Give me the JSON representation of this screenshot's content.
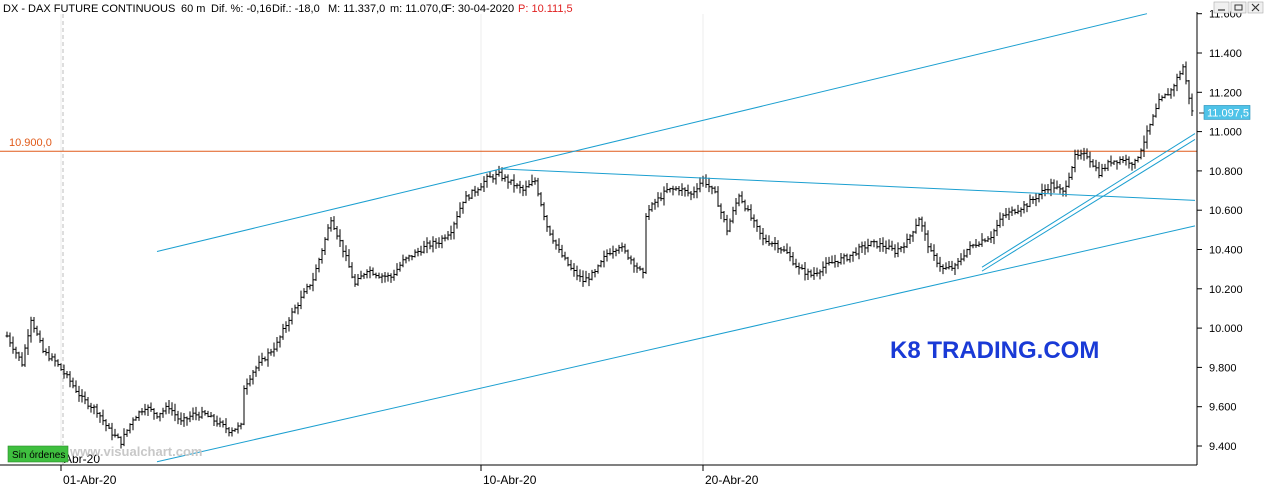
{
  "header": {
    "symbol": "DX - DAX FUTURE CONTINUOUS",
    "timeframe": "60 m",
    "diff_pct": "Dif. %: -0,16",
    "diff": "Dif.: -18,0",
    "max": "M: 11.337,0",
    "min": "m: 11.070,0",
    "date": "F: 30-04-2020",
    "price": "P: 10.111,5"
  },
  "watermark_site": "www.visualchart.com",
  "status_badge": "Sin órdenes",
  "brand": "K8 TRADING.COM",
  "level_label": "10.900,0",
  "last_price_label": "11.097,5",
  "colors": {
    "candle": "#000000",
    "trendline": "#1b9fd0",
    "level_line": "#e05a1a",
    "brand": "#1a3ad6",
    "price_tag": "#4fc3e8",
    "badge": "#3fbf3f"
  },
  "chart_data": {
    "type": "bar",
    "title": "",
    "ylim": [
      9300,
      11600
    ],
    "yticks": [
      "9.400",
      "9.600",
      "9.800",
      "10.000",
      "10.200",
      "10.400",
      "10.600",
      "10.800",
      "11.000",
      "11.200",
      "11.400",
      "11.600"
    ],
    "yticks_values": [
      9400,
      9600,
      9800,
      10000,
      10200,
      10400,
      10600,
      10800,
      11000,
      11200,
      11400,
      11600
    ],
    "xticks": [
      {
        "label": "01-Abr-20",
        "index": 18
      },
      {
        "label": "10-Abr-20",
        "index": 158
      },
      {
        "label": "20-Abr-20",
        "index": 232
      }
    ],
    "partial_xlabel": "Abr-20",
    "horizontal_level": 10900,
    "last_price": 11097.5,
    "anchors": [
      [
        0,
        9960
      ],
      [
        5,
        9820
      ],
      [
        8,
        10050
      ],
      [
        12,
        9880
      ],
      [
        16,
        9830
      ],
      [
        21,
        9730
      ],
      [
        25,
        9640
      ],
      [
        30,
        9580
      ],
      [
        34,
        9480
      ],
      [
        38,
        9420
      ],
      [
        42,
        9540
      ],
      [
        46,
        9600
      ],
      [
        50,
        9560
      ],
      [
        54,
        9600
      ],
      [
        58,
        9520
      ],
      [
        62,
        9560
      ],
      [
        66,
        9560
      ],
      [
        70,
        9520
      ],
      [
        74,
        9480
      ],
      [
        78,
        9500
      ],
      [
        79,
        9700
      ],
      [
        82,
        9780
      ],
      [
        86,
        9850
      ],
      [
        90,
        9920
      ],
      [
        94,
        10050
      ],
      [
        98,
        10150
      ],
      [
        102,
        10250
      ],
      [
        106,
        10450
      ],
      [
        108,
        10560
      ],
      [
        112,
        10400
      ],
      [
        116,
        10220
      ],
      [
        120,
        10300
      ],
      [
        124,
        10270
      ],
      [
        128,
        10260
      ],
      [
        132,
        10340
      ],
      [
        136,
        10380
      ],
      [
        140,
        10420
      ],
      [
        144,
        10440
      ],
      [
        148,
        10500
      ],
      [
        152,
        10650
      ],
      [
        156,
        10700
      ],
      [
        160,
        10760
      ],
      [
        164,
        10780
      ],
      [
        168,
        10740
      ],
      [
        172,
        10700
      ],
      [
        176,
        10750
      ],
      [
        180,
        10520
      ],
      [
        184,
        10390
      ],
      [
        188,
        10300
      ],
      [
        192,
        10240
      ],
      [
        196,
        10280
      ],
      [
        200,
        10380
      ],
      [
        204,
        10420
      ],
      [
        208,
        10350
      ],
      [
        212,
        10270
      ],
      [
        213,
        10580
      ],
      [
        216,
        10640
      ],
      [
        220,
        10700
      ],
      [
        224,
        10710
      ],
      [
        228,
        10680
      ],
      [
        232,
        10760
      ],
      [
        236,
        10680
      ],
      [
        240,
        10500
      ],
      [
        244,
        10680
      ],
      [
        248,
        10560
      ],
      [
        252,
        10450
      ],
      [
        256,
        10430
      ],
      [
        260,
        10380
      ],
      [
        264,
        10300
      ],
      [
        268,
        10270
      ],
      [
        272,
        10310
      ],
      [
        276,
        10340
      ],
      [
        280,
        10360
      ],
      [
        284,
        10400
      ],
      [
        288,
        10430
      ],
      [
        292,
        10420
      ],
      [
        296,
        10390
      ],
      [
        300,
        10440
      ],
      [
        304,
        10560
      ],
      [
        308,
        10380
      ],
      [
        312,
        10300
      ],
      [
        316,
        10310
      ],
      [
        320,
        10400
      ],
      [
        324,
        10440
      ],
      [
        328,
        10470
      ],
      [
        332,
        10570
      ],
      [
        336,
        10600
      ],
      [
        340,
        10630
      ],
      [
        344,
        10680
      ],
      [
        348,
        10730
      ],
      [
        352,
        10690
      ],
      [
        356,
        10870
      ],
      [
        360,
        10880
      ],
      [
        364,
        10790
      ],
      [
        368,
        10850
      ],
      [
        372,
        10860
      ],
      [
        376,
        10840
      ],
      [
        380,
        10990
      ],
      [
        384,
        11150
      ],
      [
        388,
        11210
      ],
      [
        392,
        11330
      ],
      [
        395,
        11100
      ]
    ],
    "trendlines": [
      {
        "name": "channel-upper",
        "from": [
          50,
          10390
        ],
        "to": [
          380,
          11600
        ]
      },
      {
        "name": "channel-lower",
        "from": [
          50,
          9320
        ],
        "to": [
          396,
          10520
        ]
      },
      {
        "name": "resistance-descending",
        "from": [
          165,
          10810
        ],
        "to": [
          396,
          10650
        ]
      },
      {
        "name": "support-fast-1",
        "from": [
          325,
          10310
        ],
        "to": [
          396,
          10990
        ]
      },
      {
        "name": "support-fast-2",
        "from": [
          325,
          10290
        ],
        "to": [
          396,
          10960
        ]
      }
    ]
  }
}
